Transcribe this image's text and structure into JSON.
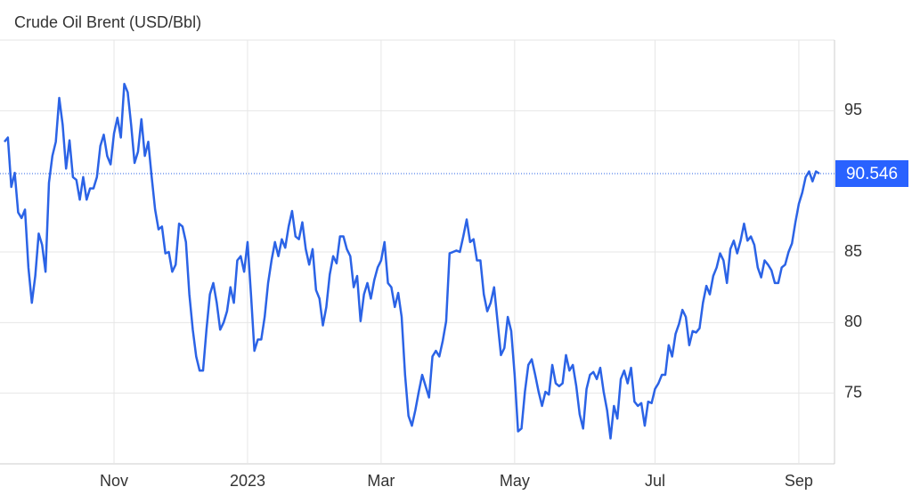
{
  "chart_data": {
    "type": "line",
    "title": "Crude Oil Brent (USD/Bbl)",
    "categories": [
      null,
      null,
      null,
      null,
      null,
      null,
      null,
      null,
      null,
      null,
      null,
      null,
      null,
      null,
      null,
      null,
      null,
      null,
      null,
      null,
      null,
      null,
      null,
      null,
      null,
      null,
      null,
      null,
      null,
      null,
      null,
      null,
      "Nov",
      null,
      null,
      null,
      null,
      null,
      null,
      null,
      null,
      null,
      null,
      null,
      null,
      null,
      null,
      null,
      null,
      null,
      null,
      null,
      null,
      null,
      null,
      null,
      null,
      null,
      null,
      null,
      null,
      null,
      null,
      null,
      null,
      null,
      null,
      null,
      null,
      null,
      null,
      "2023",
      null,
      null,
      null,
      null,
      null,
      null,
      null,
      null,
      null,
      null,
      null,
      null,
      null,
      null,
      null,
      null,
      null,
      null,
      null,
      null,
      null,
      null,
      null,
      null,
      null,
      null,
      null,
      null,
      null,
      null,
      null,
      null,
      null,
      null,
      null,
      null,
      null,
      null,
      "Mar",
      null,
      null,
      null,
      null,
      null,
      null,
      null,
      null,
      null,
      null,
      null,
      null,
      null,
      null,
      null,
      null,
      null,
      null,
      null,
      null,
      null,
      null,
      null,
      null,
      null,
      null,
      null,
      null,
      null,
      null,
      null,
      null,
      null,
      null,
      null,
      null,
      null,
      null,
      "May",
      null,
      null,
      null,
      null,
      null,
      null,
      null,
      null,
      null,
      null,
      null,
      null,
      null,
      null,
      null,
      null,
      null,
      null,
      null,
      null,
      null,
      null,
      null,
      null,
      null,
      null,
      null,
      null,
      null,
      null,
      null,
      null,
      null,
      null,
      null,
      null,
      null,
      null,
      null,
      null,
      "Jul",
      null,
      null,
      null,
      null,
      null,
      null,
      null,
      null,
      null,
      null,
      null,
      null,
      null,
      null,
      null,
      null,
      null,
      null,
      null,
      null,
      null,
      null,
      null,
      null,
      null,
      null,
      null,
      null,
      null,
      null,
      null,
      null,
      null,
      null,
      null,
      null,
      null,
      null,
      null,
      null,
      null,
      "Sep",
      null,
      null,
      null,
      null,
      null,
      null
    ],
    "series": [
      {
        "name": "Crude Oil Brent",
        "color": "#2b63e6",
        "values": [
          92.8,
          93.1,
          89.6,
          90.6,
          87.8,
          87.4,
          88,
          83.9,
          81.4,
          83.3,
          86.3,
          85.5,
          83.6,
          89.9,
          91.8,
          92.8,
          95.9,
          94,
          90.9,
          92.9,
          90.3,
          90.1,
          88.7,
          90.3,
          88.7,
          89.5,
          89.5,
          90.3,
          92.5,
          93.3,
          91.8,
          91.2,
          93.4,
          94.5,
          93.1,
          96.9,
          96.3,
          94,
          91.3,
          92.1,
          94.4,
          91.8,
          92.8,
          90.3,
          88,
          86.6,
          86.8,
          84.9,
          85,
          83.6,
          84.1,
          87,
          86.8,
          85.7,
          82,
          79.5,
          77.6,
          76.6,
          76.6,
          79.5,
          82,
          82.8,
          81.4,
          79.5,
          80,
          80.8,
          82.5,
          81.4,
          84.4,
          84.7,
          83.6,
          85.7,
          82,
          78,
          78.8,
          78.8,
          80.4,
          82.8,
          84.4,
          85.7,
          84.7,
          85.9,
          85.3,
          86.8,
          87.9,
          86.1,
          85.9,
          87.1,
          85.2,
          84.1,
          85.2,
          82.3,
          81.7,
          79.8,
          81.1,
          83.4,
          84.7,
          84.2,
          86.1,
          86.1,
          85.2,
          84.7,
          82.5,
          83.3,
          80.1,
          82,
          82.8,
          81.7,
          83,
          83.9,
          84.4,
          85.7,
          82.8,
          82.5,
          81.1,
          82.1,
          80.4,
          76.3,
          73.4,
          72.7,
          73.8,
          75.1,
          76.3,
          75.5,
          74.7,
          77.6,
          78,
          77.6,
          78.7,
          80.1,
          84.9,
          85,
          85.1,
          85,
          86.1,
          87.3,
          85.7,
          85.9,
          84.4,
          84.4,
          82,
          80.8,
          81.4,
          82.5,
          80.1,
          77.7,
          78.2,
          80.4,
          79.4,
          76.3,
          72.3,
          72.5,
          75.1,
          77,
          77.4,
          76.3,
          75.1,
          74.1,
          75.1,
          74.9,
          77,
          75.7,
          75.5,
          75.7,
          77.7,
          76.6,
          77,
          75.5,
          73.5,
          72.5,
          75.3,
          76.3,
          76.5,
          76,
          76.8,
          75.1,
          73.8,
          71.8,
          74.1,
          73.2,
          76,
          76.6,
          75.7,
          76.8,
          74.4,
          74.1,
          74.3,
          72.7,
          74.4,
          74.3,
          75.3,
          75.7,
          76.3,
          76.3,
          78.4,
          77.6,
          79.2,
          79.9,
          80.9,
          80.4,
          78.4,
          79.4,
          79.3,
          79.6,
          81.4,
          82.6,
          82,
          83.3,
          83.9,
          84.9,
          84.4,
          82.8,
          85.2,
          85.8,
          84.9,
          85.8,
          87,
          85.8,
          86.1,
          85.5,
          83.9,
          83.2,
          84.4,
          84.1,
          83.7,
          82.8,
          82.8,
          83.9,
          84.1,
          85,
          85.6,
          87.1,
          88.4,
          89.2,
          90.3,
          90.7,
          90,
          90.7,
          90.546
        ]
      }
    ],
    "current_value": 90.546,
    "ylim": [
      70,
      100
    ],
    "yticks": [
      75,
      80,
      85,
      95
    ],
    "grid": true
  }
}
